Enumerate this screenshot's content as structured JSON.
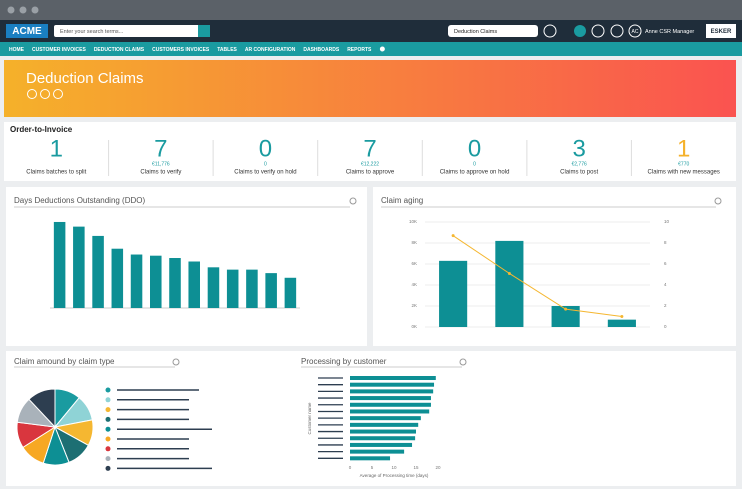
{
  "header": {
    "brand": "ACME",
    "search_placeholder": "Enter your search terms...",
    "selector": "Deduction Claims",
    "user_initials": "AC",
    "user_name": "Anne CSR Manager",
    "logo": "ESKER"
  },
  "nav": [
    "HOME",
    "CUSTOMER INVOICES",
    "DEDUCTION CLAIMS",
    "CUSTOMERS INVOICES",
    "TABLES",
    "AR CONFIGURATION",
    "DASHBOARDS",
    "REPORTS"
  ],
  "banner": {
    "title": "Deduction Claims"
  },
  "kpi": {
    "title": "Order-to-Invoice",
    "items": [
      {
        "value": 1,
        "label": "Claims batches to split"
      },
      {
        "value": 7,
        "amount": "€11,776",
        "label": "Claims to verify"
      },
      {
        "value": 0,
        "amount": "0",
        "label": "Claims to verify on hold"
      },
      {
        "value": 7,
        "amount": "€12,222",
        "label": "Claims to approve"
      },
      {
        "value": 0,
        "amount": "0",
        "label": "Claims to approve on hold"
      },
      {
        "value": 3,
        "amount": "€2,776",
        "label": "Claims to post"
      },
      {
        "value": 1,
        "amount": "€770",
        "label": "Claims with new messages"
      }
    ]
  },
  "ddo_chart": {
    "type": "bar",
    "title": "Days Deductions Outstanding (DDO)",
    "categories": [
      null,
      null,
      null,
      null,
      null,
      null,
      null,
      null,
      null,
      null,
      null,
      null,
      null
    ],
    "values": [
      74,
      70,
      62,
      51,
      46,
      45,
      43,
      40,
      35,
      33,
      33,
      30,
      26
    ],
    "ylim": [
      0,
      80
    ],
    "color": "#0d8f94"
  },
  "claim_aging": {
    "type": "bar-line",
    "title": "Claim aging",
    "categories": [
      null,
      null,
      null,
      null
    ],
    "series": [
      {
        "values": [
          6300,
          8200,
          2000,
          700
        ],
        "color": "#0d8f94"
      },
      {
        "values": [
          8.7,
          5.1,
          1.7,
          1.0
        ],
        "color": "#f5b731",
        "axis": "y2"
      }
    ],
    "ylim": [
      0,
      10000
    ],
    "yticks": [
      {
        "value": 0,
        "label": "0K"
      },
      {
        "value": 2000,
        "label": "2K"
      },
      {
        "value": 4000,
        "label": "4K"
      },
      {
        "value": 6000,
        "label": "6K"
      },
      {
        "value": 8000,
        "label": "8K"
      },
      {
        "value": 10000,
        "label": "10K"
      }
    ],
    "y2lim": [
      0,
      10
    ],
    "y2ticks": [
      0,
      2,
      4,
      6,
      8,
      10
    ]
  },
  "claim_by_type": {
    "type": "pie",
    "title": "Claim amound by claim type",
    "values": [
      11,
      11,
      11,
      11,
      11,
      11,
      11,
      11,
      12
    ],
    "colors": [
      "#1a9ba0",
      "#8fd3d6",
      "#f5b731",
      "#1d6f73",
      "#0d8f94",
      "#f7a823",
      "#d9363e",
      "#a9b2ba",
      "#2d3e50"
    ]
  },
  "processing": {
    "type": "bar",
    "orientation": "horizontal",
    "title": "Processing by customer",
    "xlabel": "Average of Processing time (days)",
    "ylabel": "Customer name",
    "values": [
      19.5,
      19.1,
      18.9,
      18.4,
      18.4,
      18,
      16.1,
      15.5,
      15,
      14.8,
      14.1,
      12.3,
      9.1
    ],
    "xlim": [
      0,
      20
    ],
    "xticks": [
      0,
      5,
      10,
      15,
      20
    ],
    "color": "#0d8f94"
  }
}
